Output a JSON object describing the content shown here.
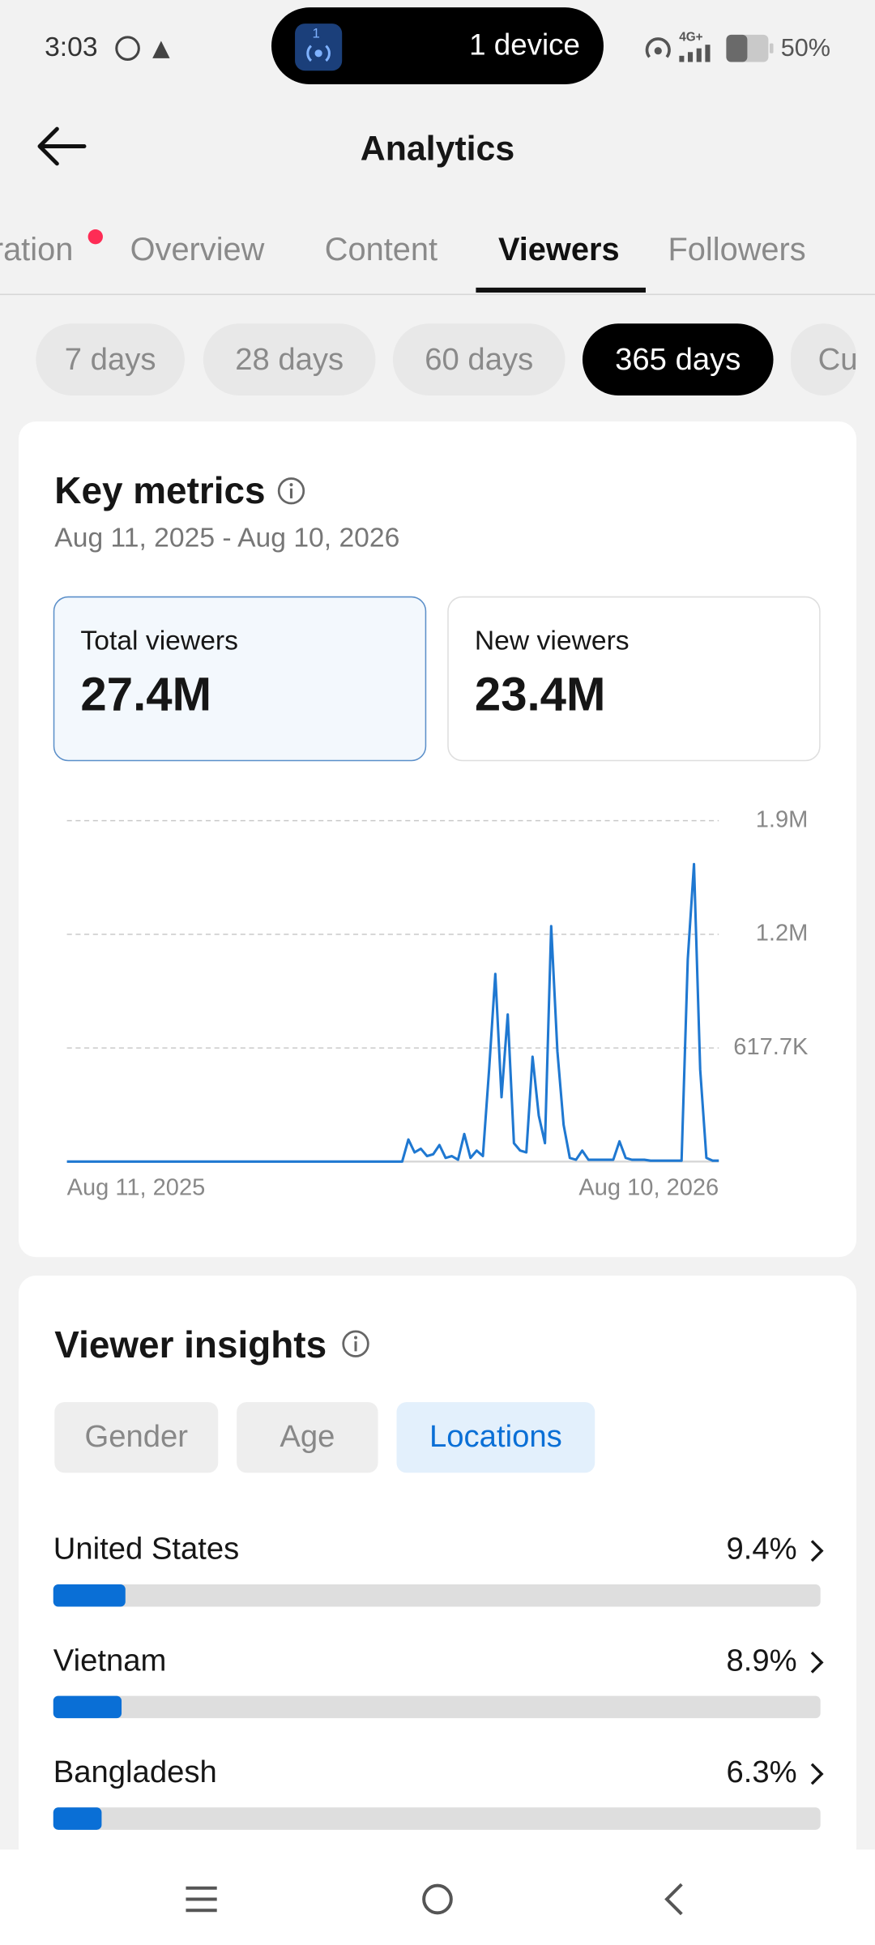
{
  "status_bar": {
    "time": "3:03",
    "island_badge": "1",
    "island_text": "1 device",
    "network": "4G+",
    "battery": "50%"
  },
  "header": {
    "title": "Analytics"
  },
  "tabs": [
    {
      "label": "ration",
      "dot": true
    },
    {
      "label": "Overview"
    },
    {
      "label": "Content"
    },
    {
      "label": "Viewers",
      "active": true
    },
    {
      "label": "Followers"
    }
  ],
  "periods": [
    {
      "label": "7 days"
    },
    {
      "label": "28 days"
    },
    {
      "label": "60 days"
    },
    {
      "label": "365 days",
      "active": true
    },
    {
      "label": "Cu"
    }
  ],
  "key_metrics": {
    "title": "Key metrics",
    "date_range": "Aug 11, 2025 - Aug 10, 2026",
    "cards": [
      {
        "label": "Total viewers",
        "value": "27.4M",
        "selected": true
      },
      {
        "label": "New viewers",
        "value": "23.4M"
      }
    ]
  },
  "viewer_insights": {
    "title": "Viewer insights",
    "filters": [
      {
        "label": "Gender"
      },
      {
        "label": "Age"
      },
      {
        "label": "Locations",
        "active": true
      }
    ]
  },
  "chart_data": [
    {
      "type": "line",
      "color": "#1f78d1",
      "grid": true,
      "categories": [
        "Aug 11, 2025",
        null,
        null,
        null,
        null,
        null,
        null,
        null,
        null,
        null,
        null,
        null,
        null,
        null,
        null,
        null,
        null,
        null,
        null,
        null,
        null,
        null,
        null,
        null,
        null,
        null,
        null,
        null,
        null,
        null,
        null,
        null,
        null,
        null,
        null,
        null,
        null,
        null,
        null,
        null,
        null,
        null,
        null,
        null,
        null,
        null,
        null,
        null,
        null,
        null,
        null,
        null,
        null,
        null,
        null,
        null,
        null,
        null,
        null,
        null,
        null,
        null,
        null,
        null,
        null,
        null,
        null,
        null,
        null,
        null,
        null,
        null,
        null,
        null,
        null,
        null,
        null,
        null,
        null,
        null,
        null,
        null,
        null,
        null,
        null,
        null,
        null,
        null,
        null,
        null,
        null,
        null,
        null,
        null,
        null,
        null,
        null,
        null,
        null,
        null,
        null,
        null,
        null,
        null,
        null,
        "Aug 10, 2026"
      ],
      "values": [
        0,
        0,
        0,
        0,
        0,
        0,
        0,
        0,
        0,
        0,
        0,
        0,
        0,
        0,
        0,
        0,
        0,
        0,
        0,
        0,
        0,
        0,
        0,
        0,
        0,
        0,
        0,
        0,
        0,
        0,
        0,
        0,
        0,
        0,
        0,
        0,
        0,
        0,
        0,
        0,
        0,
        0,
        0,
        0,
        0,
        0,
        0,
        0,
        0,
        0,
        0,
        0,
        0,
        0,
        0,
        120000,
        50000,
        70000,
        30000,
        40000,
        90000,
        20000,
        30000,
        10000,
        150000,
        20000,
        60000,
        30000,
        500000,
        1020000,
        350000,
        800000,
        100000,
        60000,
        50000,
        570000,
        250000,
        100000,
        1280000,
        600000,
        200000,
        20000,
        10000,
        60000,
        10000,
        10000,
        10000,
        10000,
        10000,
        110000,
        20000,
        10000,
        10000,
        10000,
        5000,
        5000,
        5000,
        5000,
        5000,
        5000,
        1100000,
        1617000,
        500000,
        20000,
        5000,
        5000
      ],
      "ylim": [
        0,
        1853100
      ],
      "yticks": [
        {
          "value": 617700,
          "label": "617.7K"
        },
        {
          "value": 1235400,
          "label": "1.2M"
        },
        {
          "value": 1853100,
          "label": "1.9M"
        }
      ]
    },
    {
      "type": "bar",
      "orientation": "horizontal",
      "color": "#0a6fd6",
      "categories": [
        "United States",
        "Vietnam",
        "Bangladesh"
      ],
      "values": [
        9.4,
        8.9,
        6.3
      ],
      "value_labels": [
        "9.4%",
        "8.9%",
        "6.3%"
      ],
      "xlim": [
        0,
        100
      ]
    }
  ]
}
